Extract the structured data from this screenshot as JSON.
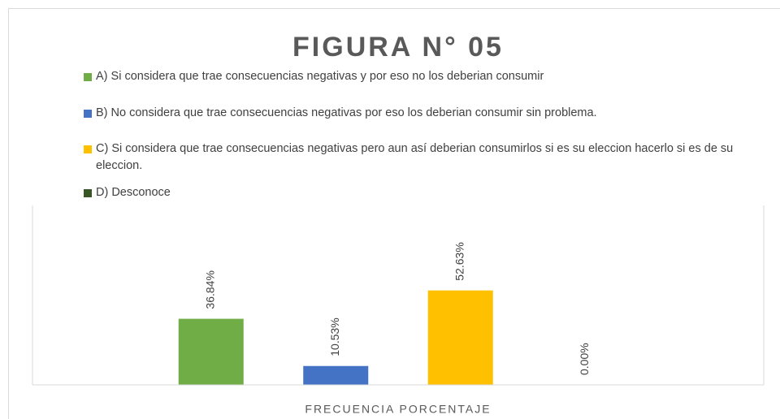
{
  "chart_data": {
    "type": "bar",
    "title": "FIGURA N° 05",
    "categories": [
      "FRECUENCIA PORCENTAJE"
    ],
    "series": [
      {
        "name": "A) Si considera que trae consecuencias negativas y por eso no los deberian consumir",
        "color": "#70ad47",
        "values": [
          36.84
        ],
        "value_labels": [
          "36.84%"
        ]
      },
      {
        "name": "B) No considera que trae consecuencias negativas por eso los deberian consumir sin problema.",
        "color": "#4472c4",
        "values": [
          10.53
        ],
        "value_labels": [
          "10.53%"
        ]
      },
      {
        "name": "C) Si considera que trae consecuencias negativas pero aun así  deberian consumirlos si es su eleccion hacerlo si es de su eleccion.",
        "color": "#ffc000",
        "values": [
          52.63
        ],
        "value_labels": [
          "52.63%"
        ]
      },
      {
        "name": "D) Desconoce",
        "color": "#375623",
        "values": [
          0.0
        ],
        "value_labels": [
          "0.00%"
        ]
      }
    ],
    "ylim": [
      0,
      100
    ]
  }
}
